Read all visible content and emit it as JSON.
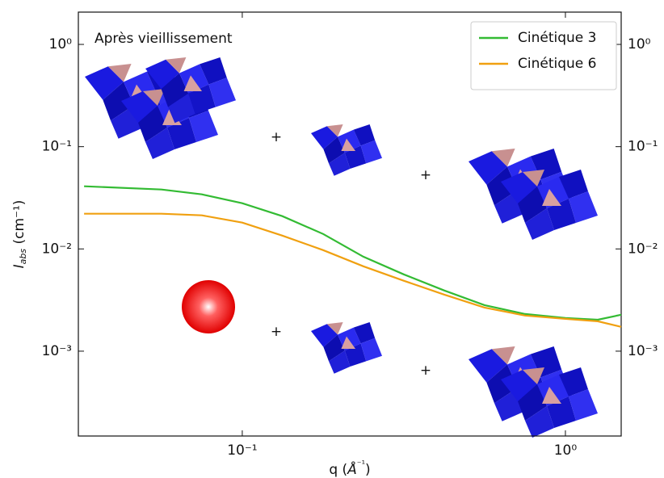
{
  "chart_data": {
    "type": "line",
    "annotation": "Après vieillissement",
    "operators": [
      "+",
      "+",
      "+",
      "+"
    ],
    "xlabel": [
      "q (",
      "Å",
      "⁻¹",
      ")"
    ],
    "ylabel": [
      "I",
      "abs",
      " (cm⁻¹)"
    ],
    "xscale": "log",
    "yscale": "log",
    "xlim": [
      0.0311,
      1.488
    ],
    "ylim": [
      0.000148,
      2.07
    ],
    "xticks": [
      {
        "value": 0.1,
        "label": "10⁻¹"
      },
      {
        "value": 1,
        "label": "10⁰"
      }
    ],
    "yticks": [
      {
        "value": 0.001,
        "label": "10⁻³"
      },
      {
        "value": 0.01,
        "label": "10⁻²"
      },
      {
        "value": 0.1,
        "label": "10⁻¹"
      },
      {
        "value": 1,
        "label": "10⁰"
      }
    ],
    "legend": "upper right",
    "x": [
      0.0324,
      0.0562,
      0.075,
      0.1,
      0.133,
      0.178,
      0.237,
      0.316,
      0.422,
      0.562,
      0.75,
      1,
      1.259,
      1.488
    ],
    "series": [
      {
        "name": "Cinétique 3",
        "color": "#33bb33",
        "values": [
          0.041,
          0.0381,
          0.0342,
          0.028,
          0.0209,
          0.014,
          0.0084,
          0.00564,
          0.00392,
          0.00282,
          0.00231,
          0.00211,
          0.00203,
          0.00227
        ]
      },
      {
        "name": "Cinétique 6",
        "color": "#f0a010",
        "values": [
          0.0221,
          0.0221,
          0.0213,
          0.0181,
          0.0135,
          0.00973,
          0.00676,
          0.00488,
          0.00357,
          0.00267,
          0.00223,
          0.00207,
          0.00196,
          0.00173
        ]
      }
    ]
  }
}
